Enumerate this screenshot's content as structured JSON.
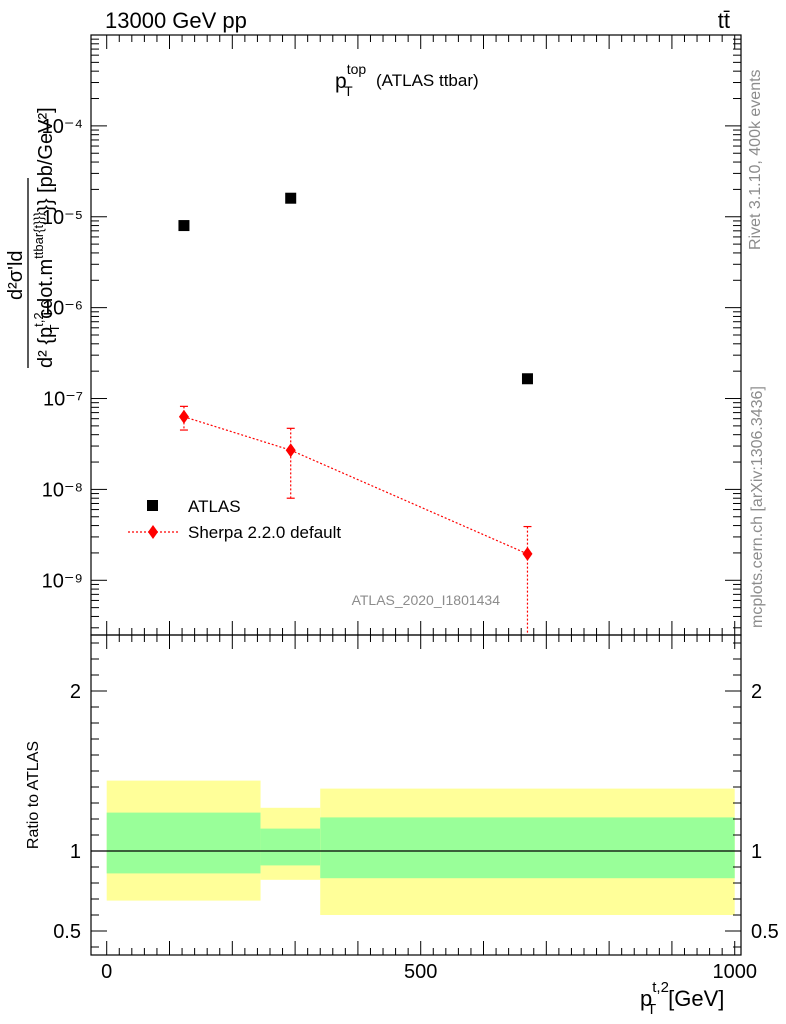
{
  "header": {
    "energy_label": "13000 GeV pp",
    "process_label": "tt̄"
  },
  "side_labels": {
    "rivet": "Rivet 3.1.10,  400k events",
    "mcplots": "mcplots.cern.ch [arXiv:1306.3436]"
  },
  "chart_data": [
    {
      "type": "scatter",
      "panel": "main",
      "title_main": "p",
      "title_sup": "top",
      "title_sub": "T",
      "title_suffix": "(ATLAS ttbar)",
      "ylabel_numerator": "d²σ'ld",
      "ylabel_denominator": "d² {p",
      "ylabel_sub": "T",
      "ylabel_sup": "t,2",
      "ylabel_rest": " cdot.m",
      "ylabel_sup2": "ttbar{t}}}",
      "ylabel_unit": "}} [pb/GeV²]",
      "yscale": "log",
      "ylim": [
        2.5e-10,
        0.001
      ],
      "xlim": [
        -25,
        1010
      ],
      "y_tick_labels": [
        "10⁻⁴",
        "10⁻⁵",
        "10⁻⁶",
        "10⁻⁷",
        "10⁻⁸",
        "10⁻⁹"
      ],
      "y_tick_values": [
        0.0001,
        1e-05,
        1e-06,
        1e-07,
        1e-08,
        1e-09
      ],
      "watermark": "ATLAS_2020_I1801434",
      "legend_position": "bottom-left",
      "series": [
        {
          "name": "ATLAS",
          "color": "#000000",
          "marker": "square",
          "x": [
            123,
            293,
            670
          ],
          "y": [
            8e-06,
            1.6e-05,
            1.65e-07
          ]
        },
        {
          "name": "Sherpa 2.2.0 default",
          "color": "#ff0000",
          "marker": "diamond",
          "line": "dotted",
          "x": [
            123,
            293,
            670
          ],
          "y": [
            6.3e-08,
            2.7e-08,
            1.95e-09
          ],
          "y_err_low": [
            4.5e-08,
            8e-09,
            2.5e-10
          ],
          "y_err_high": [
            8.2e-08,
            4.7e-08,
            3.9e-09
          ]
        }
      ]
    },
    {
      "type": "area",
      "panel": "ratio",
      "ylabel": "Ratio to ATLAS",
      "xlabel_main": "p",
      "xlabel_sub": "T",
      "xlabel_sup": "t,2",
      "xlabel_unit": "[GeV]",
      "xlim": [
        -25,
        1010
      ],
      "ylim": [
        0.35,
        2.35
      ],
      "x_tick_labels": [
        "0",
        "500",
        "1000"
      ],
      "x_tick_values": [
        0,
        500,
        1000
      ],
      "y_tick_labels": [
        "0.5",
        "1",
        "2"
      ],
      "y_tick_values": [
        0.5,
        1,
        2
      ],
      "bins": [
        {
          "x_low": 0,
          "x_high": 245,
          "inner_low": 0.86,
          "inner_high": 1.24,
          "outer_low": 0.69,
          "outer_high": 1.44
        },
        {
          "x_low": 245,
          "x_high": 340,
          "inner_low": 0.91,
          "inner_high": 1.14,
          "outer_low": 0.82,
          "outer_high": 1.27
        },
        {
          "x_low": 340,
          "x_high": 1000,
          "inner_low": 0.83,
          "inner_high": 1.21,
          "outer_low": 0.6,
          "outer_high": 1.39
        }
      ],
      "inner_color": "#99ff99",
      "outer_color": "#ffff99",
      "reference_line": 1
    }
  ]
}
